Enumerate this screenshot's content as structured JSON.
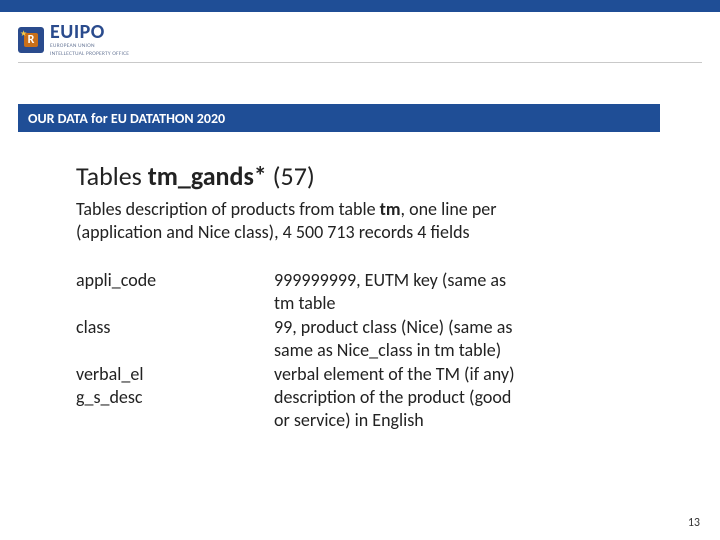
{
  "colors": {
    "brand_blue": "#1f4e96",
    "logo_blue": "#2a4b8d",
    "logo_orange": "#c96f1a",
    "logo_star": "#f7c948",
    "divider": "#c9c9c9",
    "text": "#222222",
    "background": "#ffffff"
  },
  "typography": {
    "family": "Calibri",
    "title_size_pt": 20,
    "body_size_pt": 14,
    "banner_size_pt": 11
  },
  "logo": {
    "main": "EUIPO",
    "sub1": "EUROPEAN UNION",
    "sub2": "INTELLECTUAL PROPERTY OFFICE",
    "badge_letter": "R"
  },
  "banner": "OUR DATA for EU DATATHON 2020",
  "title": {
    "prefix": "Tables ",
    "name": "tm_gands*",
    "count": "  (57)"
  },
  "description": {
    "line1a": "Tables description of products from table ",
    "line1b": "tm",
    "line1c": ", one line per",
    "line2": "(application and Nice class), 4 500 713 records 4 fields"
  },
  "fields": [
    {
      "name": "appli_code",
      "desc_lines": [
        "999999999, EUTM key (same as",
        "tm table"
      ]
    },
    {
      "name": "class",
      "desc_lines": [
        "99, product class (Nice) (same as",
        "same as Nice_class in tm table)"
      ]
    },
    {
      "name": "verbal_el",
      "desc_lines": [
        "verbal element of the TM (if any)"
      ]
    },
    {
      "name": "g_s_desc",
      "desc_lines": [
        "description of the product (good",
        "or service) in English"
      ]
    }
  ],
  "page_number": "13"
}
